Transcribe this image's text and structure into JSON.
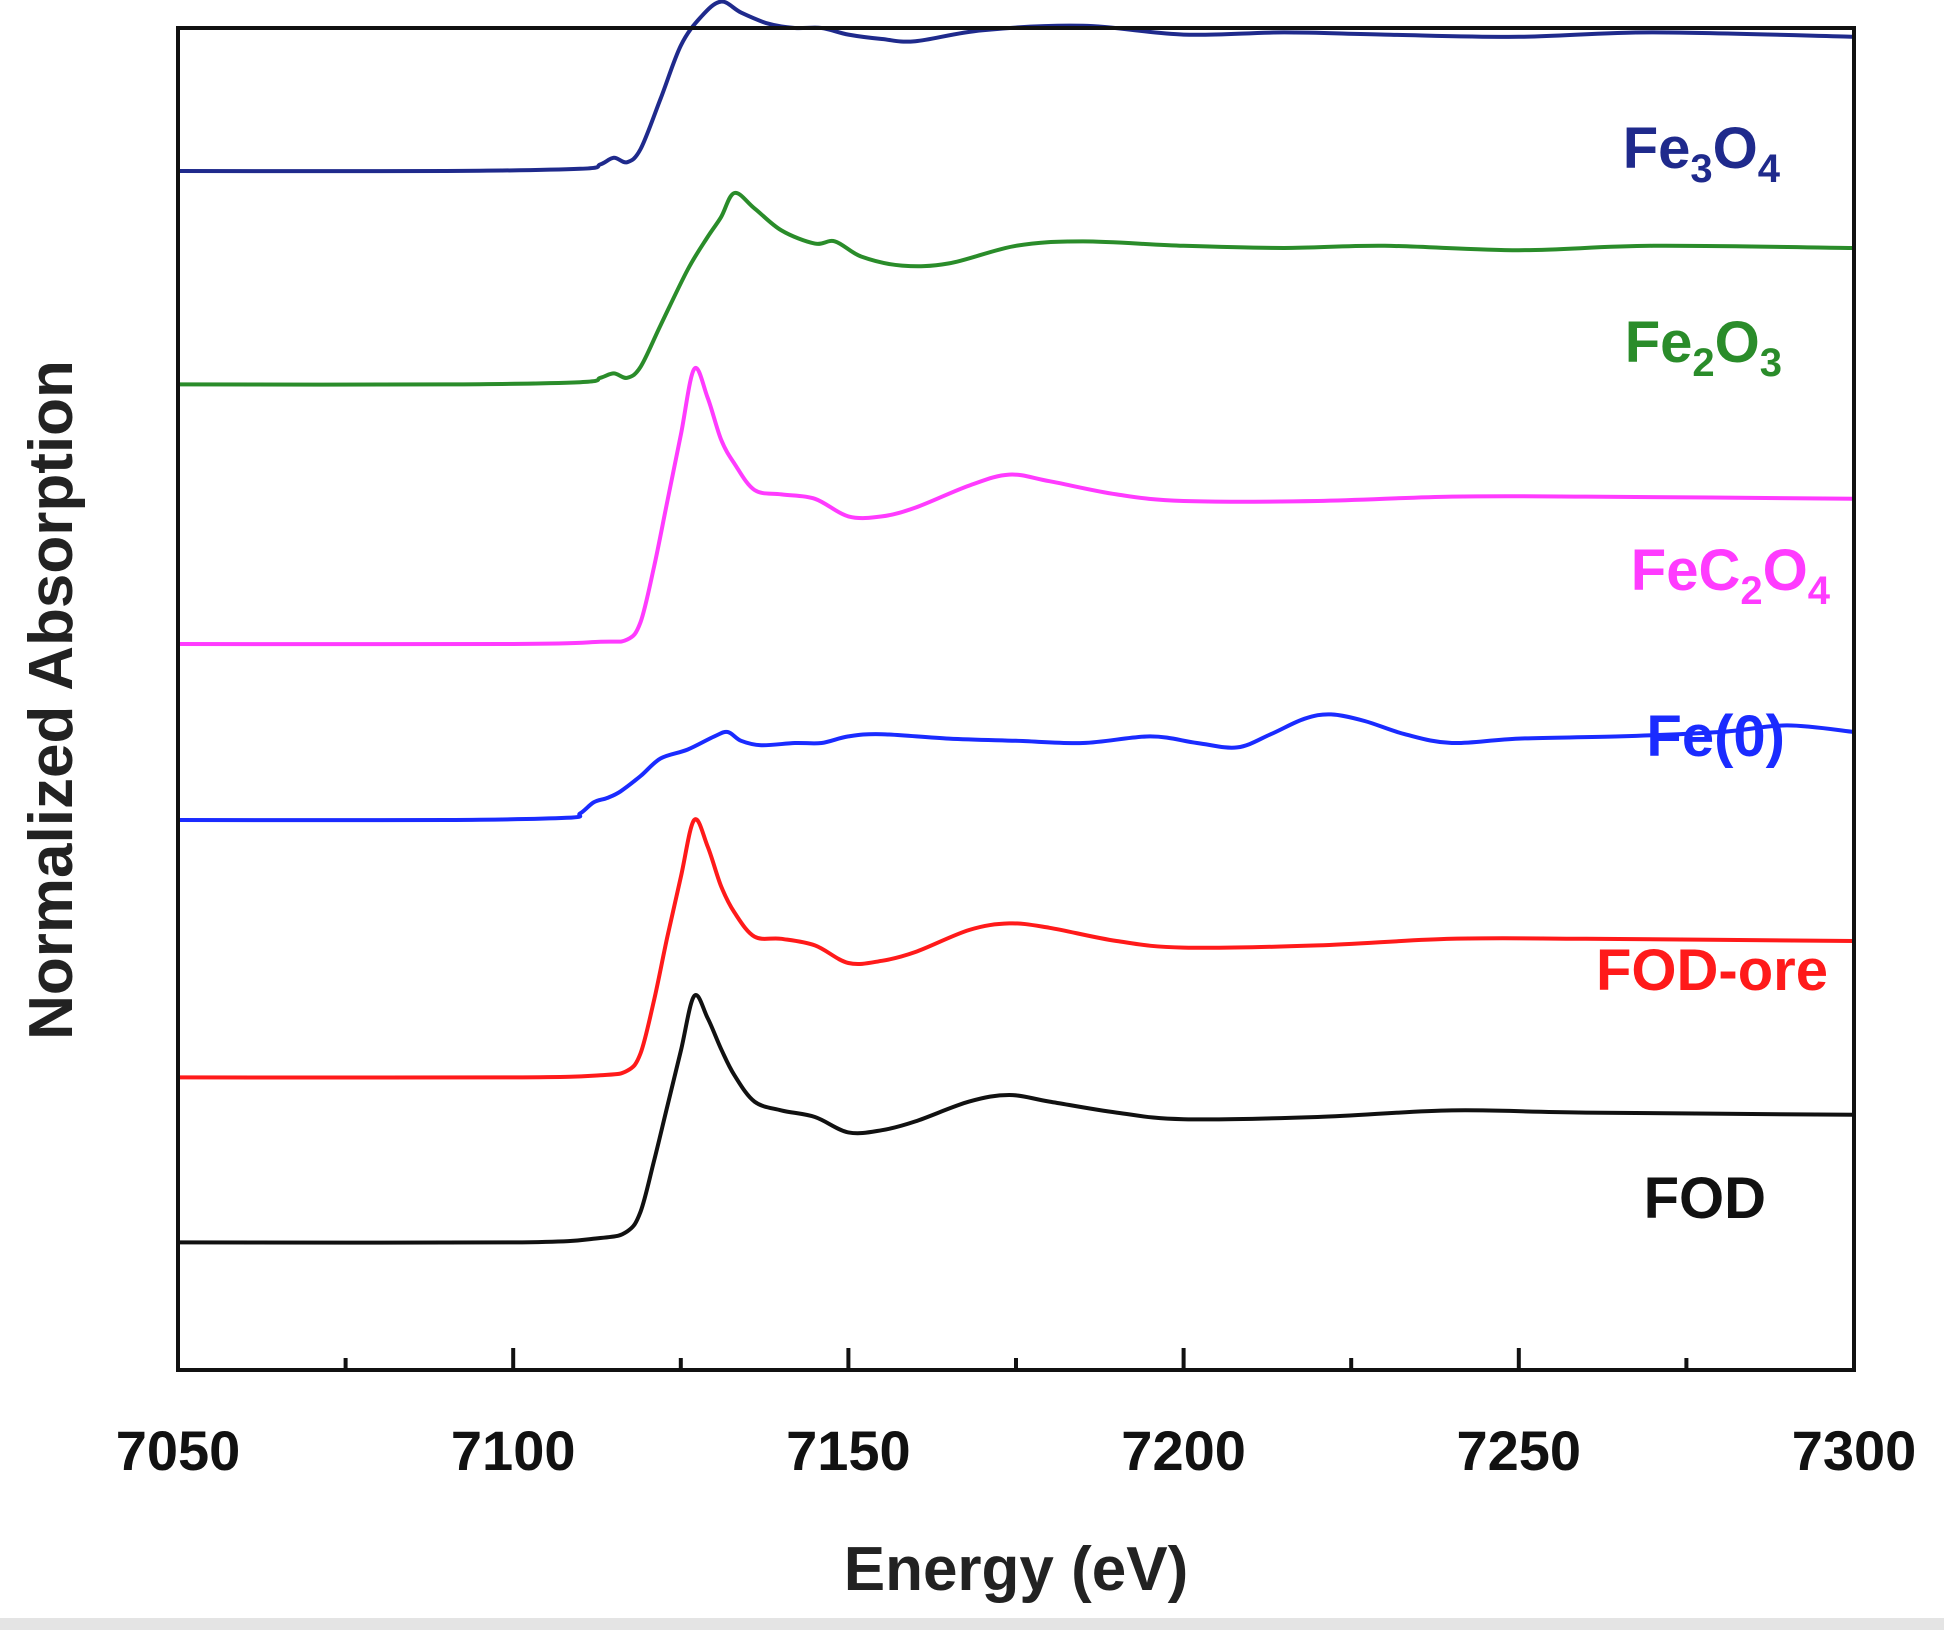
{
  "chart_data": {
    "type": "line",
    "title": "",
    "xlabel": "Energy (eV)",
    "ylabel": "Normalized Absorption",
    "xlim": [
      7050,
      7300
    ],
    "ylim": [
      0,
      6.1
    ],
    "xticks": [
      7050,
      7100,
      7150,
      7200,
      7250,
      7300
    ],
    "yticks": [],
    "grid": false,
    "legend": "inline labels at right of each curve",
    "series": [
      {
        "name": "Fe3O4",
        "label_main": [
          "Fe",
          "3",
          "O",
          "4"
        ],
        "color": "#1f2a8c",
        "x": [
          7050,
          7090,
          7110,
          7113,
          7115,
          7117,
          7119,
          7122,
          7125,
          7128,
          7131,
          7134,
          7138,
          7142,
          7146,
          7150,
          7155,
          7160,
          7170,
          7185,
          7200,
          7215,
          7230,
          7250,
          7270,
          7300
        ],
        "y": [
          5.45,
          5.45,
          5.46,
          5.48,
          5.51,
          5.49,
          5.55,
          5.78,
          6.02,
          6.15,
          6.22,
          6.17,
          6.12,
          6.1,
          6.1,
          6.07,
          6.05,
          6.04,
          6.09,
          6.11,
          6.07,
          6.08,
          6.07,
          6.06,
          6.08,
          6.06
        ]
      },
      {
        "name": "Fe2O3",
        "label_main": [
          "Fe",
          "2",
          "O",
          "3"
        ],
        "color": "#2a8c2a",
        "x": [
          7050,
          7090,
          7110,
          7113,
          7115,
          7117,
          7119,
          7122,
          7126,
          7129,
          7131,
          7133,
          7136,
          7140,
          7145,
          7148,
          7152,
          7158,
          7165,
          7175,
          7185,
          7200,
          7215,
          7230,
          7250,
          7270,
          7300
        ],
        "y": [
          4.48,
          4.48,
          4.49,
          4.51,
          4.53,
          4.51,
          4.56,
          4.75,
          5.0,
          5.15,
          5.24,
          5.35,
          5.28,
          5.18,
          5.12,
          5.13,
          5.06,
          5.02,
          5.03,
          5.11,
          5.13,
          5.11,
          5.1,
          5.11,
          5.09,
          5.11,
          5.1
        ]
      },
      {
        "name": "FeC2O4",
        "label_main": [
          "FeC",
          "2",
          "O",
          "4"
        ],
        "color": "#ff3bff",
        "x": [
          7050,
          7100,
          7113,
          7117,
          7119,
          7121,
          7123,
          7125,
          7127,
          7129,
          7131,
          7133,
          7136,
          7140,
          7145,
          7150,
          7155,
          7160,
          7168,
          7174,
          7180,
          7190,
          7200,
          7220,
          7240,
          7260,
          7300
        ],
        "y": [
          3.3,
          3.3,
          3.31,
          3.32,
          3.4,
          3.65,
          3.95,
          4.25,
          4.55,
          4.42,
          4.23,
          4.12,
          4.0,
          3.98,
          3.96,
          3.88,
          3.88,
          3.92,
          4.02,
          4.07,
          4.04,
          3.98,
          3.95,
          3.95,
          3.97,
          3.97,
          3.96
        ]
      },
      {
        "name": "Fe(0)",
        "label_main": [
          "Fe(0)"
        ],
        "color": "#1a2bff",
        "x": [
          7050,
          7090,
          7108,
          7110,
          7112,
          7114,
          7116,
          7119,
          7122,
          7126,
          7130,
          7132,
          7134,
          7137,
          7142,
          7146,
          7150,
          7155,
          7165,
          7175,
          7185,
          7195,
          7202,
          7208,
          7213,
          7218,
          7222,
          7227,
          7233,
          7240,
          7250,
          7265,
          7280,
          7290,
          7300
        ],
        "y": [
          2.5,
          2.5,
          2.51,
          2.53,
          2.58,
          2.6,
          2.63,
          2.7,
          2.78,
          2.82,
          2.88,
          2.9,
          2.86,
          2.84,
          2.85,
          2.85,
          2.88,
          2.89,
          2.87,
          2.86,
          2.85,
          2.88,
          2.85,
          2.83,
          2.89,
          2.96,
          2.98,
          2.95,
          2.89,
          2.85,
          2.87,
          2.88,
          2.9,
          2.93,
          2.9
        ]
      },
      {
        "name": "FOD-ore",
        "label_main": [
          "FOD-ore"
        ],
        "color": "#ff1a1a",
        "x": [
          7050,
          7100,
          7113,
          7117,
          7119,
          7121,
          7123,
          7125,
          7127,
          7129,
          7131,
          7133,
          7136,
          7140,
          7145,
          7150,
          7155,
          7160,
          7168,
          7174,
          7180,
          7190,
          7200,
          7220,
          7240,
          7260,
          7300
        ],
        "y": [
          1.33,
          1.33,
          1.34,
          1.36,
          1.44,
          1.68,
          1.97,
          2.24,
          2.5,
          2.38,
          2.2,
          2.08,
          1.97,
          1.96,
          1.93,
          1.85,
          1.86,
          1.9,
          2.0,
          2.03,
          2.01,
          1.95,
          1.92,
          1.93,
          1.96,
          1.96,
          1.95
        ]
      },
      {
        "name": "FOD",
        "label_main": [
          "FOD"
        ],
        "color": "#111111",
        "x": [
          7050,
          7100,
          7113,
          7117,
          7119,
          7121,
          7123,
          7125,
          7127,
          7129,
          7131,
          7133,
          7136,
          7140,
          7145,
          7150,
          7155,
          7160,
          7168,
          7174,
          7180,
          7190,
          7200,
          7220,
          7240,
          7260,
          7300
        ],
        "y": [
          0.58,
          0.58,
          0.6,
          0.63,
          0.72,
          0.95,
          1.2,
          1.45,
          1.7,
          1.6,
          1.46,
          1.34,
          1.22,
          1.18,
          1.15,
          1.08,
          1.09,
          1.13,
          1.22,
          1.25,
          1.22,
          1.17,
          1.14,
          1.15,
          1.18,
          1.17,
          1.16
        ]
      }
    ]
  }
}
